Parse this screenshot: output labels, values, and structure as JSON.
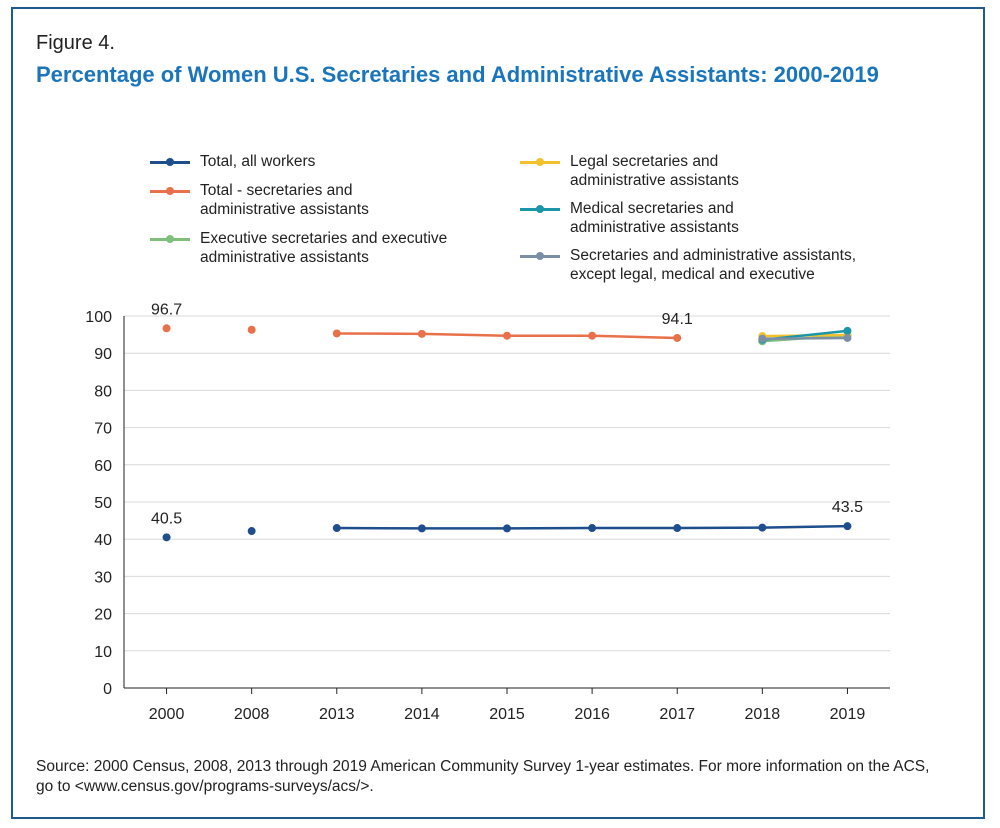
{
  "figure_label": "Figure 4.",
  "title": "Percentage of Women U.S. Secretaries and Administrative Assistants: 2000-2019",
  "source": "Source: 2000 Census, 2008, 2013 through 2019 American Community Survey 1-year estimates. For more information on the ACS, go to <www.census.gov/programs-surveys/acs/>.",
  "legend": [
    {
      "label_line1": "Total, all workers",
      "label_line2": "",
      "color": "#1f4e8c"
    },
    {
      "label_line1": "Total - secretaries and",
      "label_line2": "administrative assistants",
      "color": "#e8704a"
    },
    {
      "label_line1": "Executive secretaries and executive",
      "label_line2": "administrative assistants",
      "color": "#7fbf7b"
    },
    {
      "label_line1": "Legal secretaries and",
      "label_line2": "administrative assistants",
      "color": "#f2c12e"
    },
    {
      "label_line1": "Medical secretaries and",
      "label_line2": "administrative assistants",
      "color": "#1b96a8"
    },
    {
      "label_line1": "Secretaries and administrative assistants,",
      "label_line2": "except legal, medical and executive",
      "color": "#7a8fa6"
    }
  ],
  "chart_data": {
    "type": "line",
    "categories": [
      "2000",
      "2008",
      "2013",
      "2014",
      "2015",
      "2016",
      "2017",
      "2018",
      "2019"
    ],
    "ylim": [
      0,
      100
    ],
    "yticks": [
      0,
      10,
      20,
      30,
      40,
      50,
      60,
      70,
      80,
      90,
      100
    ],
    "grid": true,
    "legend_position": "top",
    "series": [
      {
        "name": "Total, all workers",
        "color": "#1f4e8c",
        "values": [
          40.5,
          42.2,
          43.0,
          42.9,
          42.9,
          43.0,
          43.0,
          43.1,
          43.5
        ],
        "line_from": 2
      },
      {
        "name": "Total - secretaries and administrative assistants",
        "color": "#e8704a",
        "values": [
          96.7,
          96.3,
          95.3,
          95.2,
          94.7,
          94.7,
          94.1,
          null,
          null
        ],
        "line_from": 2
      },
      {
        "name": "Executive secretaries and executive administrative assistants",
        "color": "#7fbf7b",
        "values": [
          null,
          null,
          null,
          null,
          null,
          null,
          null,
          93.2,
          94.8
        ],
        "line_from": 7
      },
      {
        "name": "Legal secretaries and administrative assistants",
        "color": "#f2c12e",
        "values": [
          null,
          null,
          null,
          null,
          null,
          null,
          null,
          94.6,
          94.9
        ],
        "line_from": 7
      },
      {
        "name": "Medical secretaries and administrative assistants",
        "color": "#1b96a8",
        "values": [
          null,
          null,
          null,
          null,
          null,
          null,
          null,
          93.6,
          96.0
        ],
        "line_from": 7
      },
      {
        "name": "Secretaries and administrative assistants, except legal, medical and executive",
        "color": "#7a8fa6",
        "values": [
          null,
          null,
          null,
          null,
          null,
          null,
          null,
          93.9,
          94.1
        ],
        "line_from": 7
      }
    ],
    "annotations": [
      {
        "text": "96.7",
        "series": 1,
        "index": 0
      },
      {
        "text": "94.1",
        "series": 1,
        "index": 6
      },
      {
        "text": "40.5",
        "series": 0,
        "index": 0
      },
      {
        "text": "43.5",
        "series": 0,
        "index": 8
      }
    ]
  }
}
